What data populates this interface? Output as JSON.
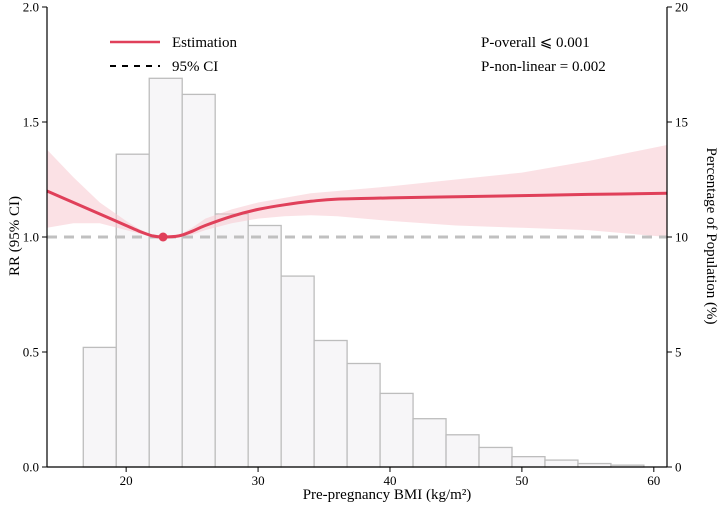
{
  "chart_data": {
    "type": "bar",
    "xlabel": "Pre-pregnancy BMI (kg/m²)",
    "ylabel_left": "RR (95% CI)",
    "ylabel_right": "Percentage of Population (%)",
    "xlim": [
      14,
      61
    ],
    "ylim_left": [
      0.0,
      2.0
    ],
    "ylim_right": [
      0,
      20
    ],
    "x_ticks": [
      20,
      30,
      40,
      50,
      60
    ],
    "y_left_ticks": [
      "0.0",
      "0.5",
      "1.0",
      "1.5",
      "2.0"
    ],
    "y_right_ticks": [
      "0",
      "5",
      "10",
      "15",
      "20"
    ],
    "grid": false,
    "legend_position": "top-left",
    "legend": [
      {
        "label": "Estimation",
        "style": "solid",
        "color": "#e0405a"
      },
      {
        "label": "95% CI",
        "style": "dashed",
        "color": "#000000"
      }
    ],
    "annotations": [
      "P-overall ⩽ 0.001",
      "P-non-linear = 0.002"
    ],
    "histogram": {
      "axis": "right",
      "bin_width": 2.5,
      "bins": [
        {
          "x0": 16.75,
          "x1": 19.25,
          "value": 5.2
        },
        {
          "x0": 19.25,
          "x1": 21.75,
          "value": 13.6
        },
        {
          "x0": 21.75,
          "x1": 24.25,
          "value": 16.9
        },
        {
          "x0": 24.25,
          "x1": 26.75,
          "value": 16.2
        },
        {
          "x0": 26.75,
          "x1": 29.25,
          "value": 11.0
        },
        {
          "x0": 29.25,
          "x1": 31.75,
          "value": 10.5
        },
        {
          "x0": 31.75,
          "x1": 34.25,
          "value": 8.3
        },
        {
          "x0": 34.25,
          "x1": 36.75,
          "value": 5.5
        },
        {
          "x0": 36.75,
          "x1": 39.25,
          "value": 4.5
        },
        {
          "x0": 39.25,
          "x1": 41.75,
          "value": 3.2
        },
        {
          "x0": 41.75,
          "x1": 44.25,
          "value": 2.1
        },
        {
          "x0": 44.25,
          "x1": 46.75,
          "value": 1.4
        },
        {
          "x0": 46.75,
          "x1": 49.25,
          "value": 0.85
        },
        {
          "x0": 49.25,
          "x1": 51.75,
          "value": 0.45
        },
        {
          "x0": 51.75,
          "x1": 54.25,
          "value": 0.3
        },
        {
          "x0": 54.25,
          "x1": 56.75,
          "value": 0.15
        },
        {
          "x0": 56.75,
          "x1": 59.25,
          "value": 0.08
        }
      ]
    },
    "series": [
      {
        "name": "Estimation",
        "axis": "left",
        "x": [
          14,
          16,
          18,
          20,
          21,
          22,
          22.8,
          24,
          25,
          26,
          28,
          30,
          32,
          34,
          36,
          40,
          45,
          50,
          55,
          61
        ],
        "y": [
          1.2,
          1.15,
          1.1,
          1.05,
          1.025,
          1.005,
          1.0,
          1.005,
          1.025,
          1.05,
          1.09,
          1.12,
          1.14,
          1.155,
          1.165,
          1.17,
          1.175,
          1.18,
          1.185,
          1.19
        ],
        "ci_lower": [
          1.04,
          1.06,
          1.06,
          1.03,
          1.015,
          1.002,
          1.0,
          1.002,
          1.01,
          1.03,
          1.06,
          1.08,
          1.09,
          1.095,
          1.09,
          1.07,
          1.05,
          1.04,
          1.03,
          1.0
        ],
        "ci_upper": [
          1.38,
          1.26,
          1.15,
          1.07,
          1.035,
          1.008,
          1.0,
          1.008,
          1.04,
          1.08,
          1.12,
          1.15,
          1.17,
          1.19,
          1.2,
          1.22,
          1.25,
          1.28,
          1.33,
          1.4
        ]
      }
    ],
    "reference": {
      "name": "Reference line",
      "y": 1.0,
      "style": "dashed",
      "color": "#c0c0c0",
      "marker_x": 22.8
    },
    "colors": {
      "curve": "#e0405a",
      "ci_fill": "#f7c8d0",
      "bar_fill": "#f7f6f8",
      "bar_stroke": "#bdbdbd",
      "reference": "#c0c0c0"
    }
  }
}
